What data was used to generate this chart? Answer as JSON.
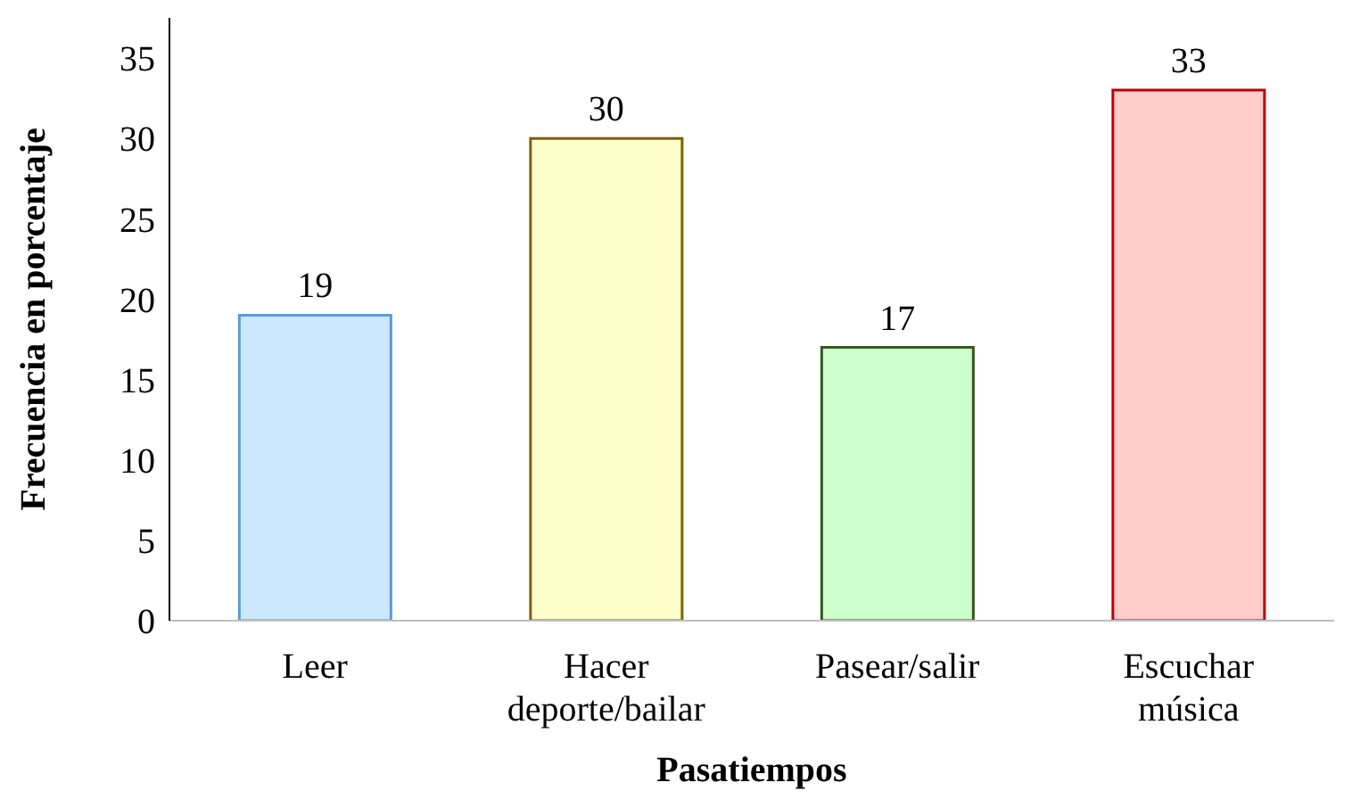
{
  "chart_data": {
    "type": "bar",
    "xlabel": "Pasatiempos",
    "ylabel": "Frecuencia en porcentaje",
    "categories": [
      "Leer",
      "Hacer deporte/bailar",
      "Pasear/salir",
      "Escuchar música"
    ],
    "values": [
      19,
      30,
      17,
      33
    ],
    "colors": [
      "#cce8ff",
      "#ffffcc",
      "#ccffcc",
      "#ffcccc"
    ],
    "ylim": [
      0,
      37.5
    ],
    "yticks": [
      0,
      5,
      10,
      15,
      20,
      25,
      30,
      35
    ],
    "data_labels": true
  }
}
